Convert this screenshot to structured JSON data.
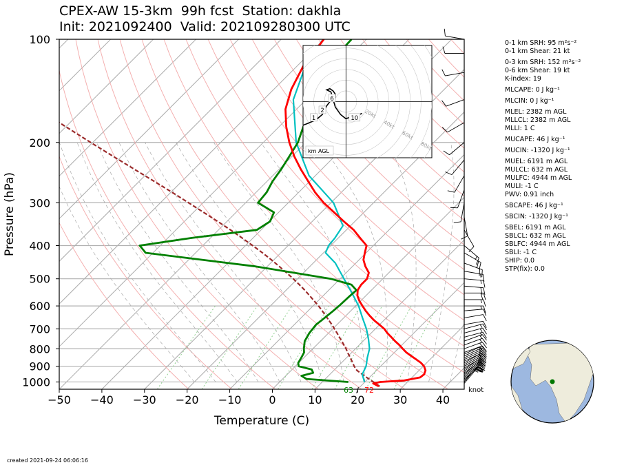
{
  "header": {
    "title_line1": "CPEX-AW 15-3km  99h fcst  Station: dakhla",
    "title_line2": "Init: 2021092400  Valid: 202109280300 UTC"
  },
  "footer": {
    "created": "created 2021-09-24 06:06:16"
  },
  "stats": [
    {
      "label": "0-1 km SRH: 95 m²s⁻²"
    },
    {
      "label": "0-1 km Shear: 21 kt"
    },
    {
      "label": "0-3 km SRH: 152 m²s⁻²",
      "gap": true
    },
    {
      "label": "0-6 km Shear: 19 kt"
    },
    {
      "label": "K-index: 19"
    },
    {
      "label": "MLCAPE: 0 J kg⁻¹",
      "gap": true
    },
    {
      "label": "MLCIN: 0 J kg⁻¹",
      "gap": true
    },
    {
      "label": "MLEL: 2382 m AGL",
      "gap": true
    },
    {
      "label": "MLLCL: 2382 m AGL"
    },
    {
      "label": "MLLI: 1 C"
    },
    {
      "label": "MUCAPE: 46 J kg⁻¹",
      "gap": true
    },
    {
      "label": "MUCIN: -1320 J kg⁻¹",
      "gap": true
    },
    {
      "label": "MUEL: 6191 m AGL",
      "gap": true
    },
    {
      "label": "MULCL: 632 m AGL"
    },
    {
      "label": "MULFC: 4944 m AGL"
    },
    {
      "label": "MULI: -1 C"
    },
    {
      "label": "PWV: 0.91 inch"
    },
    {
      "label": "SBCAPE: 46 J kg⁻¹",
      "gap": true
    },
    {
      "label": "SBCIN: -1320 J kg⁻¹",
      "gap": true
    },
    {
      "label": "SBEL: 6191 m AGL",
      "gap": true
    },
    {
      "label": "SBLCL: 632 m AGL"
    },
    {
      "label": "SBLFC: 4944 m AGL"
    },
    {
      "label": "SBLI: -1 C"
    },
    {
      "label": "SHIP: 0.0"
    },
    {
      "label": "STP(fix): 0.0"
    }
  ],
  "colors": {
    "temperature": "#ff0000",
    "dewpoint": "#008000",
    "parcel": "#9b2b2b",
    "virtual": "#00c0c0",
    "isotherm": "#b0b0b0",
    "dry_adiabat": "#f4b0b0",
    "mixing_ratio": "#90d090"
  },
  "chart_data": {
    "type": "skew-t",
    "xlabel": "Temperature (C)",
    "ylabel": "Pressure (hPa)",
    "xlim": [
      -50,
      45
    ],
    "ylim": [
      1050,
      100
    ],
    "x_ticks": [
      -50,
      -40,
      -30,
      -20,
      -10,
      0,
      10,
      20,
      30,
      40
    ],
    "y_ticks": [
      100,
      200,
      300,
      400,
      500,
      600,
      700,
      800,
      900,
      1000
    ],
    "surface_dewpoint_label": "63",
    "surface_temperature_label": "72",
    "surface_label_separator": "/",
    "wind_unit_label": "knot",
    "series": [
      {
        "key": "temperature",
        "pressure": [
          1030,
          1010,
          1000,
          990,
          970,
          950,
          925,
          900,
          880,
          860,
          840,
          820,
          800,
          780,
          760,
          740,
          720,
          700,
          680,
          660,
          640,
          620,
          600,
          580,
          560,
          540,
          520,
          500,
          480,
          460,
          440,
          420,
          400,
          380,
          360,
          340,
          320,
          300,
          280,
          260,
          240,
          220,
          200,
          180,
          160,
          140,
          120,
          100
        ],
        "values": [
          24.3,
          22.3,
          23.6,
          28.9,
          31.9,
          32.1,
          31.5,
          30.2,
          28.7,
          26.8,
          24.8,
          22.8,
          21.1,
          19.4,
          17.5,
          15.7,
          13.8,
          12.1,
          9.9,
          7.6,
          5.5,
          3.5,
          1.6,
          -0.3,
          -2.0,
          -3.2,
          -3.7,
          -3.7,
          -4.7,
          -7.0,
          -9.0,
          -10.3,
          -11.6,
          -14.9,
          -18.3,
          -22.6,
          -27.0,
          -31.7,
          -36.1,
          -40.3,
          -44.8,
          -49.4,
          -53.9,
          -58.3,
          -62.6,
          -65.9,
          -68.5,
          -70.0
        ]
      },
      {
        "key": "virtual",
        "pressure": [
          1000,
          950,
          900,
          850,
          800,
          750,
          700,
          650,
          600,
          550,
          500,
          450,
          420,
          400,
          380,
          350,
          300,
          250,
          200,
          150,
          120,
          100
        ],
        "values": [
          19.9,
          17.6,
          16.6,
          14.9,
          13.3,
          10.8,
          7.9,
          4.4,
          0.7,
          -3.9,
          -9.1,
          -14.8,
          -19.5,
          -20.5,
          -20.8,
          -21.8,
          -29.4,
          -41.5,
          -52.3,
          -63.0,
          -68.0,
          -70.2
        ]
      },
      {
        "key": "dewpoint",
        "pressure": [
          1000,
          980,
          960,
          940,
          920,
          900,
          880,
          850,
          820,
          800,
          760,
          720,
          700,
          680,
          660,
          620,
          600,
          560,
          540,
          520,
          500,
          460,
          420,
          400,
          380,
          360,
          340,
          320,
          300,
          280,
          260,
          240,
          220,
          200,
          180,
          160,
          140,
          120,
          100
        ],
        "values": [
          16.1,
          5.6,
          3.7,
          5.7,
          4.6,
          0.8,
          -0.1,
          -0.6,
          -1.2,
          -2.1,
          -3.7,
          -4.5,
          -4.7,
          -4.9,
          -4.6,
          -4.1,
          -3.9,
          -3.7,
          -3.5,
          -6.0,
          -12.2,
          -32.8,
          -61.7,
          -64.8,
          -54.4,
          -41.0,
          -39.9,
          -41.1,
          -47.1,
          -47.5,
          -48.7,
          -49.5,
          -50.6,
          -51.9,
          -54.3,
          -55.8,
          -59.6,
          -63.0,
          -63.5
        ]
      },
      {
        "key": "parcel",
        "pressure": [
          1030,
          1000,
          975,
          950,
          925,
          900,
          880,
          860,
          840,
          820,
          800,
          780,
          760,
          740,
          720,
          700,
          680,
          660,
          640,
          620,
          600,
          580,
          560,
          540,
          520,
          500,
          480,
          460,
          440,
          420,
          400,
          380,
          360,
          340,
          320,
          300,
          280,
          260,
          240,
          220,
          200,
          180,
          160,
          140,
          120,
          100
        ],
        "values": [
          24.5,
          22.0,
          19.8,
          17.6,
          15.4,
          13.8,
          12.7,
          11.5,
          10.3,
          9.0,
          7.8,
          6.4,
          5.0,
          3.5,
          2.0,
          0.4,
          -1.2,
          -3.0,
          -4.8,
          -6.7,
          -8.7,
          -10.9,
          -13.2,
          -15.6,
          -18.2,
          -21.0,
          -24.0,
          -27.2,
          -30.6,
          -34.3,
          -38.3,
          -42.6,
          -47.2,
          -52.2,
          -57.6,
          -63.4,
          -69.6,
          -76.4,
          -83.8,
          -91.8,
          -100.5,
          -110.0,
          -120.5,
          -132.0,
          -145.0,
          -160.0
        ]
      }
    ],
    "winds": {
      "pressure": [
        1010,
        1000,
        990,
        980,
        970,
        960,
        950,
        940,
        930,
        920,
        910,
        900,
        890,
        880,
        870,
        860,
        850,
        840,
        830,
        820,
        800,
        780,
        760,
        740,
        720,
        700,
        680,
        650,
        620,
        600,
        575,
        550,
        525,
        500,
        475,
        450,
        420,
        400,
        360,
        330,
        300,
        275,
        250,
        225,
        200,
        175,
        150,
        125,
        110,
        100
      ],
      "speed_kt": [
        15,
        18,
        20,
        22,
        22,
        22,
        20,
        20,
        20,
        18,
        18,
        18,
        18,
        18,
        15,
        15,
        15,
        15,
        15,
        15,
        15,
        15,
        15,
        15,
        15,
        15,
        12,
        10,
        12,
        15,
        15,
        20,
        20,
        15,
        15,
        18,
        20,
        15,
        10,
        10,
        10,
        10,
        10,
        10,
        10,
        10,
        10,
        10,
        10,
        10
      ],
      "direction_deg": [
        40,
        40,
        45,
        50,
        50,
        50,
        50,
        55,
        55,
        55,
        60,
        60,
        60,
        60,
        65,
        65,
        65,
        65,
        65,
        70,
        70,
        70,
        70,
        75,
        75,
        75,
        80,
        80,
        85,
        90,
        90,
        90,
        95,
        95,
        100,
        110,
        120,
        130,
        150,
        170,
        190,
        200,
        210,
        220,
        230,
        240,
        250,
        260,
        270,
        280
      ]
    },
    "hodograph": {
      "xlim": [
        -40,
        80
      ],
      "ylim": [
        -50,
        50
      ],
      "ring_labels": [
        "20kt",
        "40kt",
        "60kt",
        "80kt"
      ],
      "point_labels": [
        {
          "label": "1",
          "u": -30,
          "v": -15
        },
        {
          "label": "2",
          "u": -22,
          "v": -8
        },
        {
          "label": "6",
          "u": -13,
          "v": 3
        },
        {
          "label": "10",
          "u": 8,
          "v": -15
        }
      ],
      "u": [
        -40,
        -35,
        -28,
        -22,
        -20,
        -18,
        -15,
        -12,
        -10,
        -10,
        -12,
        -15,
        -18,
        -14,
        -10,
        -5,
        0,
        5,
        10,
        15
      ],
      "v": [
        -22,
        -20,
        -17,
        -12,
        -8,
        -4,
        0,
        3,
        4,
        7,
        10,
        12,
        11,
        9,
        -5,
        -12,
        -16,
        -14,
        -13,
        -11
      ],
      "legend": "km AGL"
    },
    "station_map": {
      "lat": 23.7,
      "lon": -15.9,
      "marker": "station-point"
    }
  }
}
